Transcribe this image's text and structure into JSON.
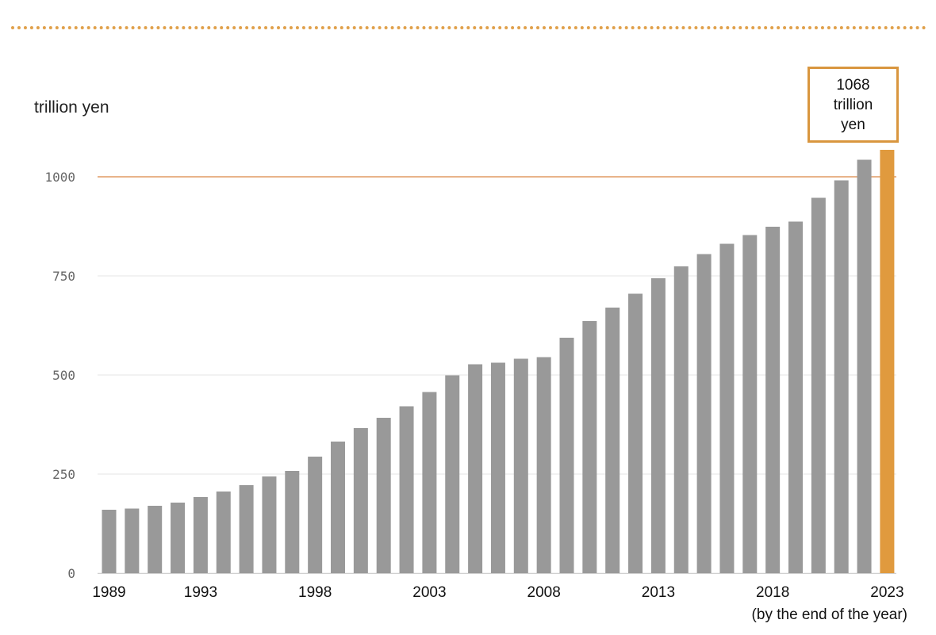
{
  "chart_data": {
    "type": "bar",
    "ylabel": "trillion yen",
    "note": "(by the end of the year)",
    "ylim": [
      0,
      1100
    ],
    "yticks": [
      "0",
      "250",
      "500",
      "750",
      "1000"
    ],
    "xtick_labels": [
      "1989",
      "1993",
      "1998",
      "2003",
      "2008",
      "2013",
      "2018",
      "2023"
    ],
    "categories": [
      "1989",
      "1990",
      "1991",
      "1992",
      "1993",
      "1994",
      "1995",
      "1996",
      "1997",
      "1998",
      "1999",
      "2000",
      "2001",
      "2002",
      "2003",
      "2004",
      "2005",
      "2006",
      "2007",
      "2008",
      "2009",
      "2010",
      "2011",
      "2012",
      "2013",
      "2014",
      "2015",
      "2016",
      "2017",
      "2018",
      "2019",
      "2020",
      "2021",
      "2022",
      "2023"
    ],
    "values": [
      160,
      163,
      170,
      178,
      192,
      206,
      222,
      244,
      258,
      294,
      332,
      366,
      392,
      421,
      457,
      499,
      527,
      531,
      541,
      545,
      594,
      636,
      670,
      705,
      744,
      774,
      805,
      831,
      853,
      874,
      887,
      947,
      991,
      1043,
      1068
    ],
    "highlight": {
      "category": "2023",
      "line1": "1068",
      "line2": "trillion",
      "line3": "yen"
    },
    "reference_line": 1000,
    "grid": true,
    "colors": {
      "bar": "#999999",
      "highlight_bar": "#e09a3e",
      "reference_line": "#e8b48a",
      "grid": "#e4e4e4",
      "divider": "#e0a04a"
    }
  }
}
